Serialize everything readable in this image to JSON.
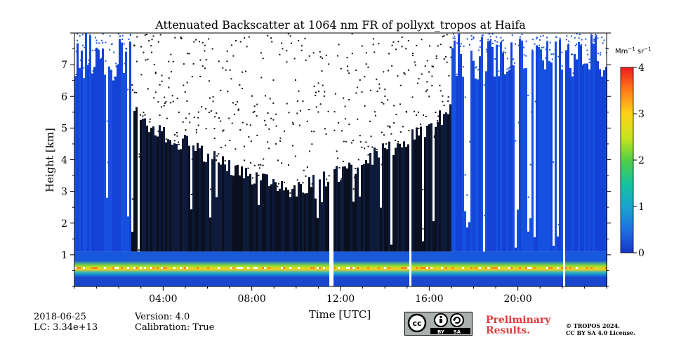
{
  "chart_data": {
    "type": "heatmap",
    "title": "Attenuated Backscatter at 1064 nm FR of pollyxt_tropos at Haifa",
    "xlabel": "Time [UTC]",
    "ylabel": "Height [km]",
    "x_range_hours": [
      0,
      24
    ],
    "y_range_km": [
      0,
      8
    ],
    "x_ticks": [
      4,
      8,
      12,
      16,
      20
    ],
    "x_tick_labels": [
      "04:00",
      "08:00",
      "12:00",
      "16:00",
      "20:00"
    ],
    "y_ticks": [
      1,
      2,
      3,
      4,
      5,
      6,
      7
    ],
    "y_tick_labels": [
      "1",
      "2",
      "3",
      "4",
      "5",
      "6",
      "7"
    ],
    "colorbar": {
      "label_prefix": "Mm",
      "label_exp1": "−1",
      "label_mid": " sr",
      "label_exp2": "−1",
      "range": [
        0,
        4
      ],
      "ticks": [
        0,
        1,
        2,
        3,
        4
      ],
      "tick_labels": [
        "0",
        "1",
        "2",
        "3",
        "4"
      ]
    },
    "data_gaps_hours": [
      11.55,
      15.1,
      22.05
    ],
    "noisy_daytime_hours": [
      2.5,
      17.0
    ]
  },
  "footer": {
    "date": "2018-06-25",
    "lc": "LC: 3.34e+13",
    "version": "Version: 4.0",
    "calibration": "Calibration: True",
    "preliminary_line1": "Preliminary",
    "preliminary_line2": "Results.",
    "copyright_line1": "© TROPOS 2024.",
    "copyright_line2": "CC BY SA 4.0 License.",
    "license_badge": {
      "cc": "cc",
      "by": "BY",
      "sa": "SA"
    }
  }
}
